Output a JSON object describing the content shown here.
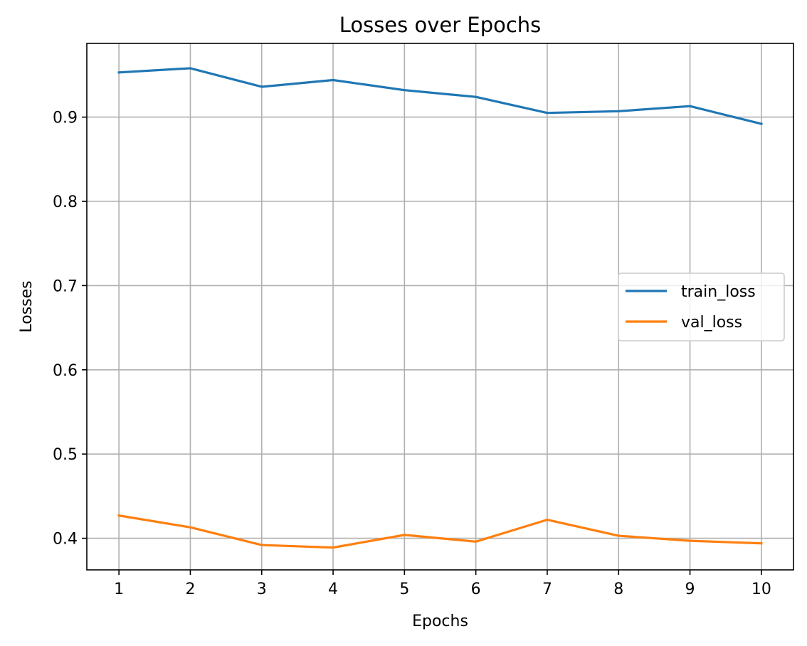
{
  "chart_data": {
    "type": "line",
    "title": "Losses over Epochs",
    "xlabel": "Epochs",
    "ylabel": "Losses",
    "x": [
      1,
      2,
      3,
      4,
      5,
      6,
      7,
      8,
      9,
      10
    ],
    "xticks": [
      "1",
      "2",
      "3",
      "4",
      "5",
      "6",
      "7",
      "8",
      "9",
      "10"
    ],
    "yticks": [
      {
        "value": 0.4,
        "label": "0.4"
      },
      {
        "value": 0.5,
        "label": "0.5"
      },
      {
        "value": 0.6,
        "label": "0.6"
      },
      {
        "value": 0.7,
        "label": "0.7"
      },
      {
        "value": 0.8,
        "label": "0.8"
      },
      {
        "value": 0.9,
        "label": "0.9"
      }
    ],
    "xlim": [
      0.55,
      10.45
    ],
    "ylim": [
      0.3625,
      0.9875
    ],
    "grid": true,
    "legend_position": "center-right",
    "series": [
      {
        "name": "train_loss",
        "color": "#1f77b4",
        "values": [
          0.953,
          0.958,
          0.936,
          0.944,
          0.932,
          0.924,
          0.905,
          0.907,
          0.913,
          0.892
        ]
      },
      {
        "name": "val_loss",
        "color": "#ff7f0e",
        "values": [
          0.427,
          0.413,
          0.392,
          0.389,
          0.404,
          0.396,
          0.422,
          0.403,
          0.397,
          0.394
        ]
      }
    ]
  }
}
